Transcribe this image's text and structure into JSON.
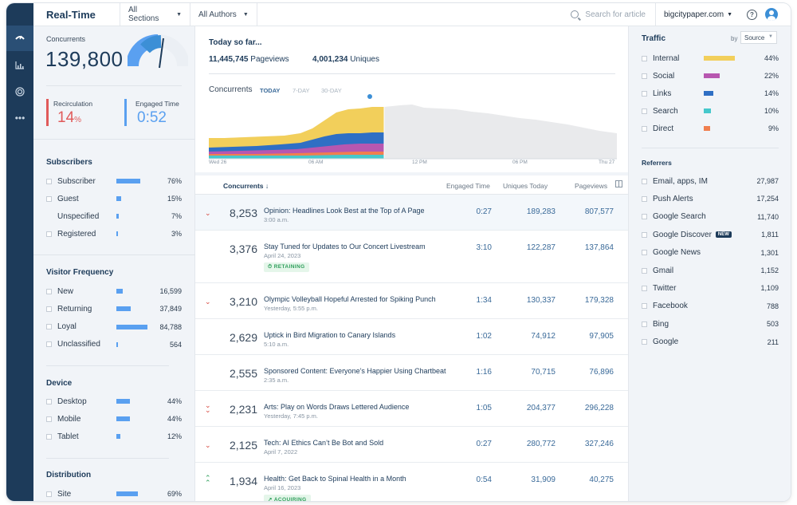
{
  "app": {
    "title": "Real-Time"
  },
  "topbar": {
    "sections": "All Sections",
    "authors": "All Authors",
    "search_placeholder": "Search for article",
    "site": "bigcitypaper.com",
    "help": "?"
  },
  "left": {
    "concurrents_label": "Concurrents",
    "concurrents": "139,800",
    "recirculation_label": "Recirculation",
    "recirculation": "14",
    "recirculation_unit": "%",
    "engaged_label": "Engaged Time",
    "engaged": "0:52",
    "subscribers_title": "Subscribers",
    "subscribers": [
      {
        "name": "Subscriber",
        "value": "76%",
        "fraction": 0.76
      },
      {
        "name": "Guest",
        "value": "15%",
        "fraction": 0.15
      },
      {
        "name": "Unspecified",
        "value": "7%",
        "fraction": 0.07
      },
      {
        "name": "Registered",
        "value": "3%",
        "fraction": 0.03
      }
    ],
    "frequency_title": "Visitor Frequency",
    "frequency": [
      {
        "name": "New",
        "value": "16,599",
        "fraction": 0.2
      },
      {
        "name": "Returning",
        "value": "37,849",
        "fraction": 0.45
      },
      {
        "name": "Loyal",
        "value": "84,788",
        "fraction": 1.0
      },
      {
        "name": "Unclassified",
        "value": "564",
        "fraction": 0.02
      }
    ],
    "device_title": "Device",
    "device": [
      {
        "name": "Desktop",
        "value": "44%",
        "fraction": 0.44
      },
      {
        "name": "Mobile",
        "value": "44%",
        "fraction": 0.44
      },
      {
        "name": "Tablet",
        "value": "12%",
        "fraction": 0.12
      }
    ],
    "distribution_title": "Distribution",
    "distribution": [
      {
        "name": "Site",
        "value": "69%",
        "fraction": 0.69
      }
    ]
  },
  "center": {
    "today_title": "Today so far...",
    "pageviews": "11,445,745",
    "pageviews_label": "Pageviews",
    "uniques": "4,001,234",
    "uniques_label": "Uniques",
    "chart_title": "Concurrents",
    "chart_tabs": [
      "TODAY",
      "7-DAY",
      "30-DAY"
    ],
    "chart_xticks": [
      "Wed 26",
      "06 AM",
      "12 PM",
      "06 PM",
      "Thu 27"
    ],
    "colors": {
      "yellow": "#f2cf5b",
      "blue": "#2f6fc4",
      "purple": "#b757b0",
      "teal": "#46c8cc",
      "orange": "#f07f4f",
      "gray": "#e9eaec"
    }
  },
  "table": {
    "headers": [
      "Concurrents",
      "Engaged Time",
      "Uniques Today",
      "Pageviews"
    ],
    "rows": [
      {
        "concurrents": "8,253",
        "title": "Opinion: Headlines Look Best at the Top of A Page",
        "sub": "3:00 a.m.",
        "engaged": "0:27",
        "uniques": "189,283",
        "pageviews": "807,577",
        "trend": "down",
        "badge": ""
      },
      {
        "concurrents": "3,376",
        "title": "Stay Tuned for Updates to Our Concert Livestream",
        "sub": "April 24, 2023",
        "engaged": "3:10",
        "uniques": "122,287",
        "pageviews": "137,864",
        "trend": "",
        "badge": "RETAINING"
      },
      {
        "concurrents": "3,210",
        "title": "Olympic Volleyball Hopeful Arrested for Spiking Punch",
        "sub": "Yesterday, 5:55 p.m.",
        "engaged": "1:34",
        "uniques": "130,337",
        "pageviews": "179,328",
        "trend": "down",
        "badge": ""
      },
      {
        "concurrents": "2,629",
        "title": "Uptick in Bird Migration to Canary Islands",
        "sub": "5:10 a.m.",
        "engaged": "1:02",
        "uniques": "74,912",
        "pageviews": "97,905",
        "trend": "",
        "badge": ""
      },
      {
        "concurrents": "2,555",
        "title": "Sponsored Content: Everyone’s Happier Using Chartbeat",
        "sub": "2:35 a.m.",
        "engaged": "1:16",
        "uniques": "70,715",
        "pageviews": "76,896",
        "trend": "",
        "badge": ""
      },
      {
        "concurrents": "2,231",
        "title": "Arts: Play on Words Draws Lettered Audience",
        "sub": "Yesterday, 7:45 p.m.",
        "engaged": "1:05",
        "uniques": "204,377",
        "pageviews": "296,228",
        "trend": "down2",
        "badge": ""
      },
      {
        "concurrents": "2,125",
        "title": "Tech: AI Ethics Can’t Be Bot and Sold",
        "sub": "April 7, 2022",
        "engaged": "0:27",
        "uniques": "280,772",
        "pageviews": "327,246",
        "trend": "down",
        "badge": ""
      },
      {
        "concurrents": "1,934",
        "title": "Health: Get Back to Spinal Health in a Month",
        "sub": "April 16, 2023",
        "engaged": "0:54",
        "uniques": "31,909",
        "pageviews": "40,275",
        "trend": "up2",
        "badge": "ACQUIRING"
      }
    ]
  },
  "right": {
    "traffic_title": "Traffic",
    "by_label": "by",
    "by_value": "Source",
    "traffic": [
      {
        "name": "Internal",
        "value": "44%",
        "fraction": 0.44,
        "color": "#f2cf5b"
      },
      {
        "name": "Social",
        "value": "22%",
        "fraction": 0.22,
        "color": "#b757b0"
      },
      {
        "name": "Links",
        "value": "14%",
        "fraction": 0.14,
        "color": "#2f6fc4"
      },
      {
        "name": "Search",
        "value": "10%",
        "fraction": 0.1,
        "color": "#46c8cc"
      },
      {
        "name": "Direct",
        "value": "9%",
        "fraction": 0.09,
        "color": "#f07f4f"
      }
    ],
    "referrers_title": "Referrers",
    "referrers": [
      {
        "name": "Email, apps, IM",
        "value": "27,987",
        "new": false
      },
      {
        "name": "Push Alerts",
        "value": "17,254",
        "new": false
      },
      {
        "name": "Google Search",
        "value": "11,740",
        "new": false
      },
      {
        "name": "Google Discover",
        "value": "1,811",
        "new": true
      },
      {
        "name": "Google News",
        "value": "1,301",
        "new": false
      },
      {
        "name": "Gmail",
        "value": "1,152",
        "new": false
      },
      {
        "name": "Twitter",
        "value": "1,109",
        "new": false
      },
      {
        "name": "Facebook",
        "value": "788",
        "new": false
      },
      {
        "name": "Bing",
        "value": "503",
        "new": false
      },
      {
        "name": "Google",
        "value": "211",
        "new": false
      }
    ],
    "new_badge": "NEW"
  }
}
